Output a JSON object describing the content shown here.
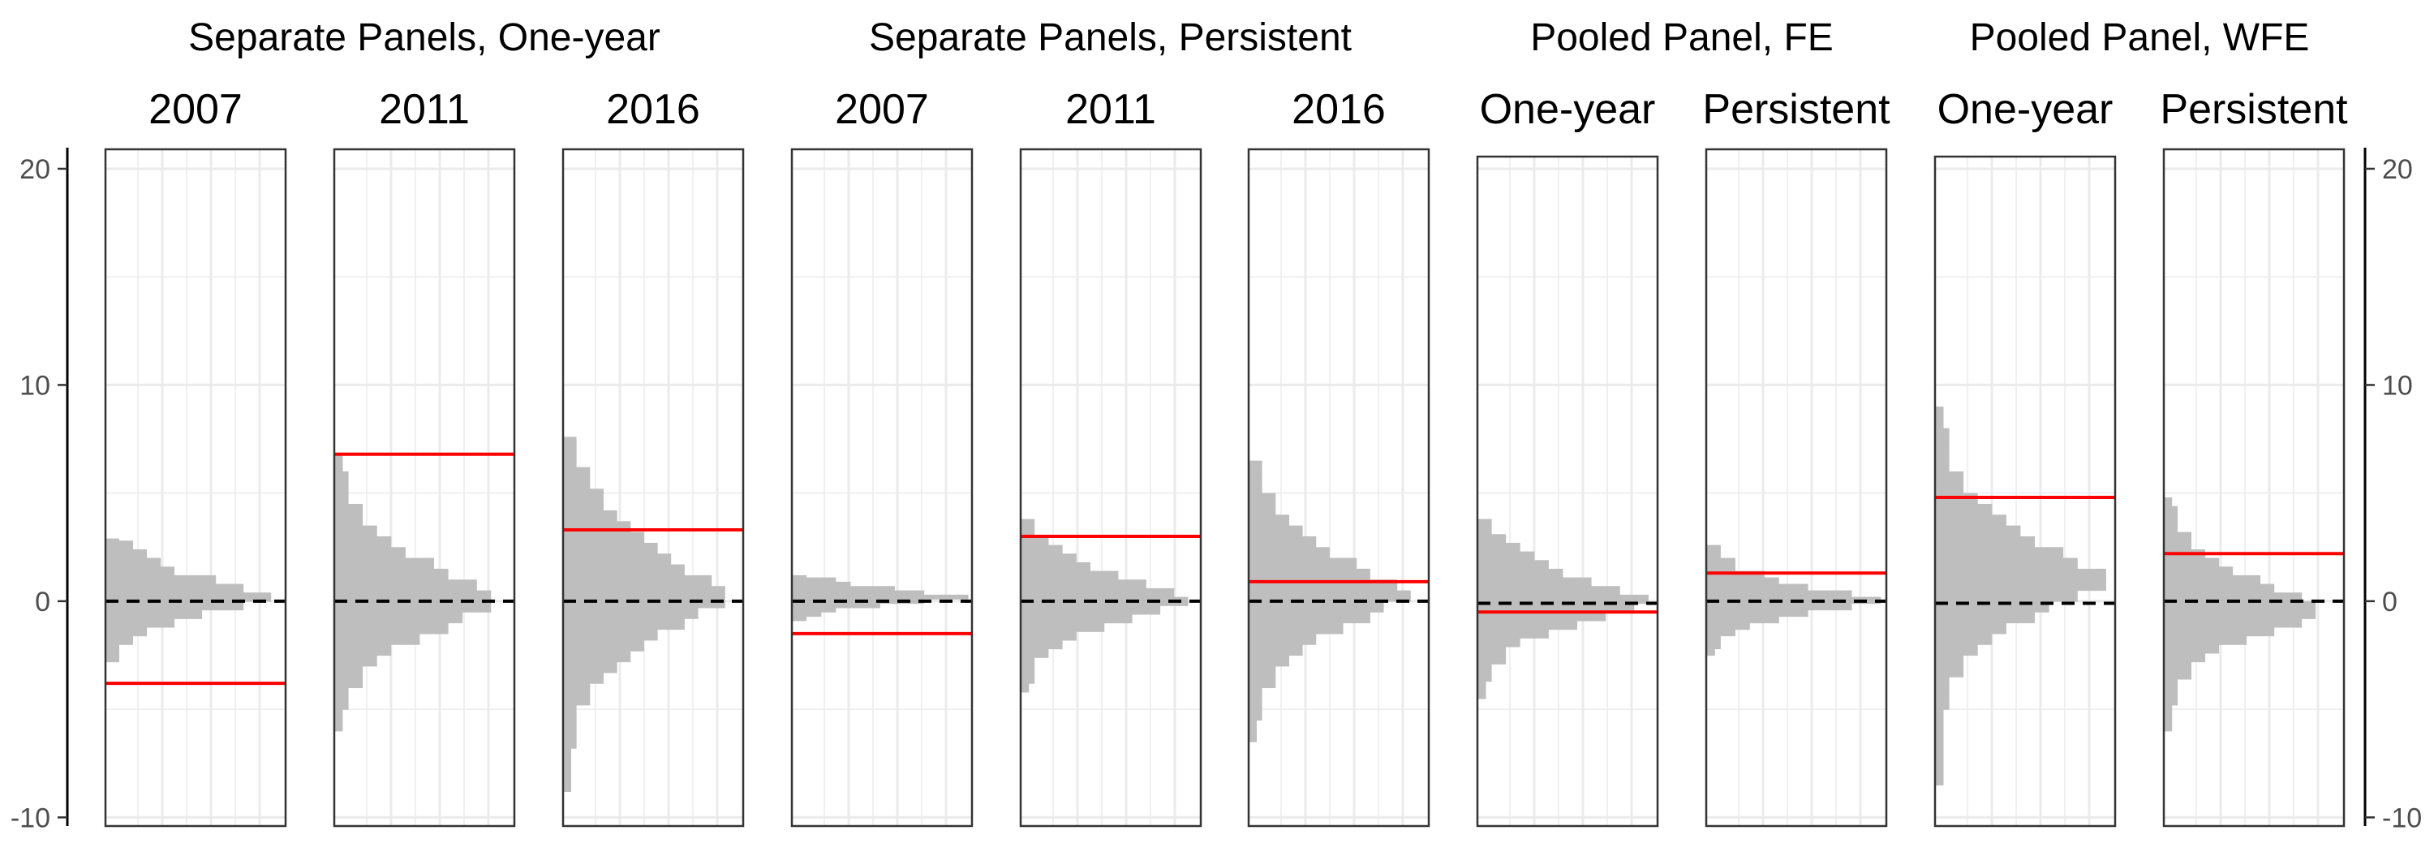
{
  "chart_data": {
    "type": "histogram",
    "y_axis": {
      "ylim": [
        -11,
        21.5
      ],
      "ticks": [
        -10,
        0,
        10,
        20
      ],
      "tick_labels": [
        "-10",
        "0",
        "10",
        "20"
      ],
      "minor_gridlines": [
        -5,
        5,
        15
      ],
      "sides": [
        "left",
        "right"
      ]
    },
    "grid": true,
    "colors": {
      "histogram": "#bebebe",
      "estimate_line": "#ff0000",
      "zero_line": "#000000",
      "grid": "#ebebeb"
    },
    "groups": [
      {
        "title": "Separate Panels, One-year",
        "panels": [
          0,
          1,
          2
        ]
      },
      {
        "title": "Separate Panels, Persistent",
        "panels": [
          3,
          4,
          5
        ]
      },
      {
        "title": "Pooled Panel, FE",
        "panels": [
          6,
          7
        ]
      },
      {
        "title": "Pooled Panel, WFE",
        "panels": [
          8,
          9
        ]
      }
    ],
    "panels": [
      {
        "title": "2007",
        "estimate": -3.8,
        "zero_line": 0,
        "lower_y": -11,
        "bin_width": 0.4,
        "range": [
          -2.8,
          2.9
        ],
        "peak": 0.2,
        "max_width": 0.92,
        "sd": 1.25
      },
      {
        "title": "2011",
        "estimate": 6.8,
        "zero_line": 0,
        "lower_y": -11,
        "bin_width": 0.5,
        "range": [
          -6.0,
          6.8
        ],
        "peak": 0.0,
        "max_width": 0.95,
        "sd": 2.2
      },
      {
        "title": "2016",
        "estimate": 3.3,
        "zero_line": 0,
        "lower_y": -11,
        "bin_width": 0.5,
        "range": [
          -8.8,
          7.6
        ],
        "peak": 0.2,
        "max_width": 0.9,
        "sd": 3.0
      },
      {
        "title": "2007",
        "estimate": -1.5,
        "zero_line": 0,
        "lower_y": -11,
        "bin_width": 0.2,
        "range": [
          -0.9,
          1.2
        ],
        "peak": 0.2,
        "max_width": 0.98,
        "sd": 0.5
      },
      {
        "title": "2011",
        "estimate": 3.0,
        "zero_line": 0,
        "lower_y": -11,
        "bin_width": 0.4,
        "range": [
          -4.2,
          3.8
        ],
        "peak": 0.0,
        "max_width": 0.93,
        "sd": 1.6
      },
      {
        "title": "2016",
        "estimate": 0.9,
        "zero_line": 0,
        "lower_y": -11,
        "bin_width": 0.5,
        "range": [
          -6.5,
          6.5
        ],
        "peak": 0.3,
        "max_width": 0.9,
        "sd": 2.4
      },
      {
        "title": "One-year",
        "estimate": -0.5,
        "zero_line": -0.1,
        "lower_y": -11,
        "bin_width": 0.4,
        "range": [
          -4.5,
          3.8
        ],
        "peak": 0.0,
        "max_width": 0.95,
        "sd": 1.6
      },
      {
        "title": "Persistent",
        "estimate": 1.3,
        "zero_line": 0,
        "lower_y": -11,
        "bin_width": 0.3,
        "range": [
          -2.5,
          2.6
        ],
        "peak": 0.0,
        "max_width": 0.97,
        "sd": 0.95
      },
      {
        "title": "One-year",
        "estimate": 4.8,
        "zero_line": -0.1,
        "lower_y": -11,
        "bin_width": 0.5,
        "range": [
          -8.5,
          9.0
        ],
        "peak": 1.0,
        "max_width": 0.95,
        "sd": 2.6
      },
      {
        "title": "Persistent",
        "estimate": 2.2,
        "zero_line": 0,
        "lower_y": -11,
        "bin_width": 0.4,
        "range": [
          -6.0,
          4.8
        ],
        "peak": -0.4,
        "max_width": 0.92,
        "sd": 1.8
      }
    ]
  }
}
